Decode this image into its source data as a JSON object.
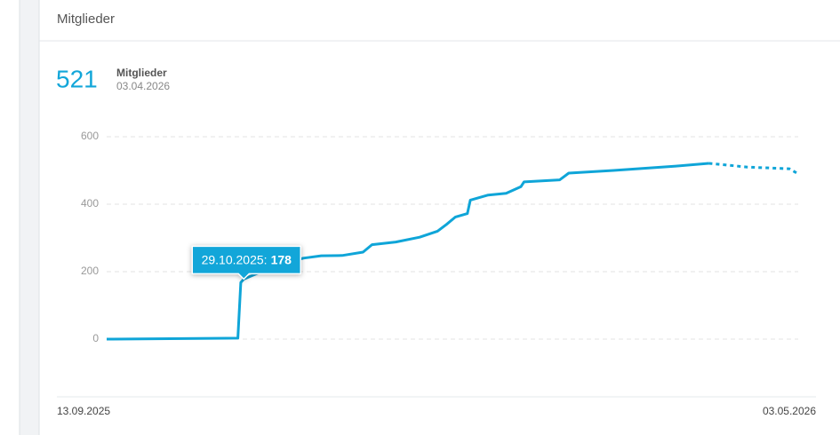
{
  "panel": {
    "title": "Mitglieder"
  },
  "summary": {
    "value": 521,
    "label": "Mitglieder",
    "date": "03.04.2026"
  },
  "chart_data": {
    "type": "line",
    "xlim": [
      "2025-09-13",
      "2026-05-03"
    ],
    "xticks": [
      {
        "value": "2025-09-13",
        "label": "13.09.2025"
      },
      {
        "value": "2026-05-03",
        "label": "03.05.2026"
      }
    ],
    "ylim": [
      0,
      600
    ],
    "yticks": [
      0,
      200,
      400,
      600
    ],
    "grid": true,
    "series": [
      {
        "color": "#0fa5d8",
        "style": "solid",
        "x": [
          "2025-09-13",
          "2025-10-27",
          "2025-10-28",
          "2025-10-29",
          "2025-11-08",
          "2025-11-18",
          "2025-11-24",
          "2025-12-01",
          "2025-12-08",
          "2025-12-11",
          "2025-12-19",
          "2025-12-27",
          "2026-01-02",
          "2026-01-05",
          "2026-01-08",
          "2026-01-12",
          "2026-01-13",
          "2026-01-19",
          "2026-01-25",
          "2026-01-30",
          "2026-01-31",
          "2026-02-12",
          "2026-02-15",
          "2026-03-02",
          "2026-03-23",
          "2026-04-03"
        ],
        "values": [
          0,
          3,
          168,
          178,
          215,
          240,
          247,
          248,
          258,
          280,
          288,
          302,
          320,
          340,
          362,
          372,
          412,
          427,
          432,
          452,
          466,
          472,
          492,
          500,
          513,
          521
        ]
      },
      {
        "color": "#0fa5d8",
        "style": "dotted",
        "x": [
          "2026-04-03",
          "2026-04-16",
          "2026-04-30",
          "2026-05-03"
        ],
        "values": [
          521,
          510,
          505,
          490
        ]
      }
    ],
    "tooltip": {
      "x": "2025-10-29",
      "label": "29.10.2025:",
      "value": 178
    }
  }
}
